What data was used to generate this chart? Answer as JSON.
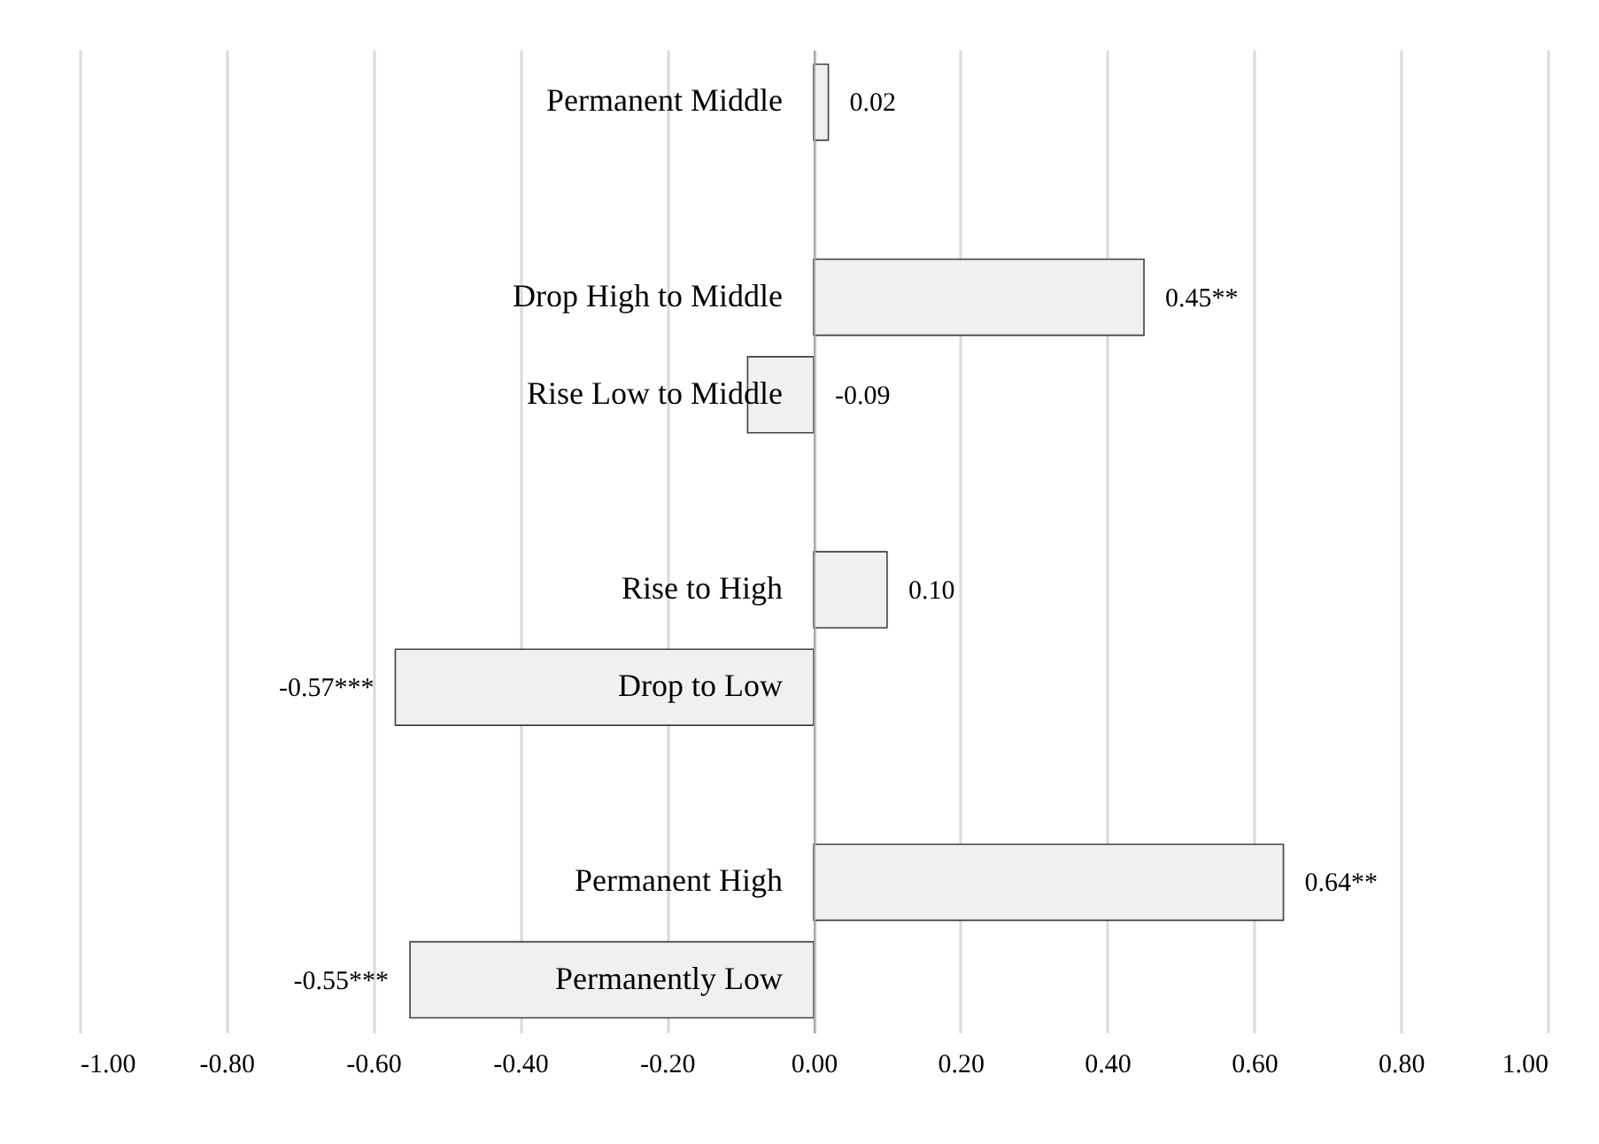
{
  "chart_data": {
    "type": "bar",
    "orientation": "horizontal",
    "color": "#f0f0f0",
    "categories": [
      "Permanent Middle",
      null,
      "Drop High to Middle",
      "Rise Low to Middle",
      null,
      "Rise to High",
      "Drop to Low",
      null,
      "Permanent High",
      "Permanently Low"
    ],
    "values": [
      0.02,
      null,
      0.45,
      -0.09,
      null,
      0.1,
      -0.57,
      null,
      0.64,
      -0.55
    ],
    "value_labels": [
      "0.02",
      null,
      "0.45**",
      "-0.09",
      null,
      "0.10",
      "-0.57***",
      null,
      "0.64**",
      "-0.55***"
    ],
    "xlim": [
      -1,
      1
    ],
    "xticks": [
      {
        "value": -1,
        "label": "-1.00"
      },
      {
        "value": -0.8,
        "label": "-0.80"
      },
      {
        "value": -0.6,
        "label": "-0.60"
      },
      {
        "value": -0.4,
        "label": "-0.40"
      },
      {
        "value": -0.2,
        "label": "-0.20"
      },
      {
        "value": 0,
        "label": "0.00"
      },
      {
        "value": 0.2,
        "label": "0.20"
      },
      {
        "value": 0.4,
        "label": "0.40"
      },
      {
        "value": 0.6,
        "label": "0.60"
      },
      {
        "value": 0.8,
        "label": "0.80"
      },
      {
        "value": 1,
        "label": "1.00"
      }
    ],
    "grid": true
  }
}
